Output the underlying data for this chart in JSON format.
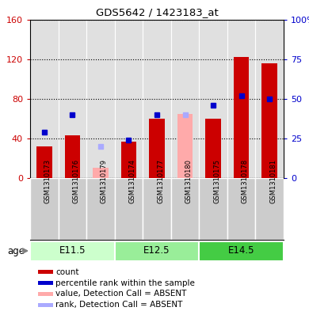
{
  "title": "GDS5642 / 1423183_at",
  "samples": [
    "GSM1310173",
    "GSM1310176",
    "GSM1310179",
    "GSM1310174",
    "GSM1310177",
    "GSM1310180",
    "GSM1310175",
    "GSM1310178",
    "GSM1310181"
  ],
  "groups": [
    {
      "label": "E11.5",
      "indices": [
        0,
        1,
        2
      ],
      "color": "#ccffcc"
    },
    {
      "label": "E12.5",
      "indices": [
        3,
        4,
        5
      ],
      "color": "#99ee99"
    },
    {
      "label": "E14.5",
      "indices": [
        6,
        7,
        8
      ],
      "color": "#44cc44"
    }
  ],
  "count_values": [
    32,
    43,
    null,
    37,
    60,
    null,
    60,
    122,
    116
  ],
  "rank_values": [
    29,
    40,
    null,
    24,
    40,
    null,
    46,
    52,
    50
  ],
  "absent_count": [
    null,
    null,
    10,
    null,
    null,
    65,
    null,
    null,
    null
  ],
  "absent_rank": [
    null,
    null,
    20,
    null,
    null,
    40,
    null,
    null,
    null
  ],
  "count_color": "#cc0000",
  "rank_color": "#0000cc",
  "absent_count_color": "#ffaaaa",
  "absent_rank_color": "#aaaaff",
  "col_bg_color": "#cccccc",
  "left_ylim": [
    0,
    160
  ],
  "right_ylim": [
    0,
    100
  ],
  "left_yticks": [
    0,
    40,
    80,
    120,
    160
  ],
  "right_yticks": [
    0,
    25,
    50,
    75,
    100
  ],
  "left_yticklabels": [
    "0",
    "40",
    "80",
    "120",
    "160"
  ],
  "right_yticklabels": [
    "0",
    "25",
    "50",
    "75",
    "100%"
  ],
  "left_ytick_color": "#cc0000",
  "right_ytick_color": "#0000cc",
  "age_label": "age",
  "legend_items": [
    {
      "label": "count",
      "color": "#cc0000"
    },
    {
      "label": "percentile rank within the sample",
      "color": "#0000cc"
    },
    {
      "label": "value, Detection Call = ABSENT",
      "color": "#ffaaaa"
    },
    {
      "label": "rank, Detection Call = ABSENT",
      "color": "#aaaaff"
    }
  ]
}
